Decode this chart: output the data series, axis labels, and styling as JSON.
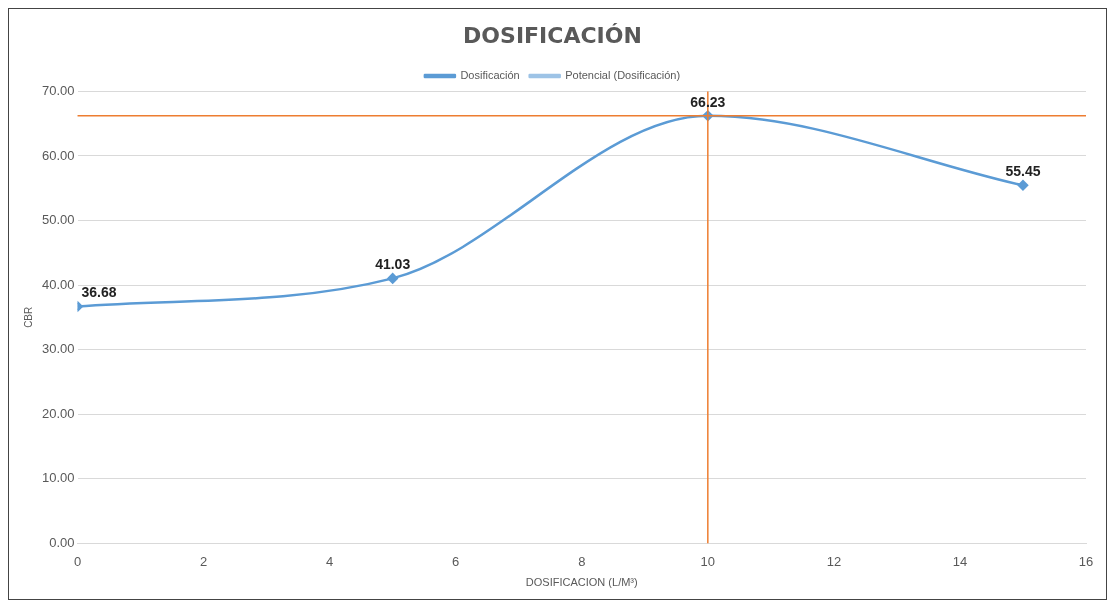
{
  "chart_data": {
    "type": "line",
    "title": "DOSIFICACIÓN",
    "xlabel": "DOSIFICACION (L/M³)",
    "ylabel": "CBR",
    "x": [
      0,
      5,
      10,
      15
    ],
    "series": [
      {
        "name": "Dosificación",
        "color": "#5b9bd5",
        "values": [
          36.68,
          41.03,
          66.23,
          55.45
        ],
        "marker": "diamond"
      },
      {
        "name": "Potencial (Dosificación)",
        "color": "#9dc3e6",
        "values": [
          null,
          null,
          null,
          null
        ],
        "marker": "none"
      }
    ],
    "xlim": [
      0,
      16
    ],
    "xticks": [
      0,
      2,
      4,
      6,
      8,
      10,
      12,
      14,
      16
    ],
    "ylim": [
      0,
      70
    ],
    "yticks": [
      {
        "value": 0,
        "label": "0.00"
      },
      {
        "value": 10,
        "label": "10.00"
      },
      {
        "value": 20,
        "label": "20.00"
      },
      {
        "value": 30,
        "label": "30.00"
      },
      {
        "value": 40,
        "label": "40.00"
      },
      {
        "value": 50,
        "label": "50.00"
      },
      {
        "value": 60,
        "label": "60.00"
      },
      {
        "value": 70,
        "label": "70.00"
      }
    ],
    "ref_lines": [
      {
        "axis": "y",
        "value": 66.23,
        "color": "#ed7d31"
      },
      {
        "axis": "x",
        "value": 10,
        "color": "#ed7d31"
      }
    ],
    "grid": "y",
    "legend": "top",
    "data_labels": true
  }
}
